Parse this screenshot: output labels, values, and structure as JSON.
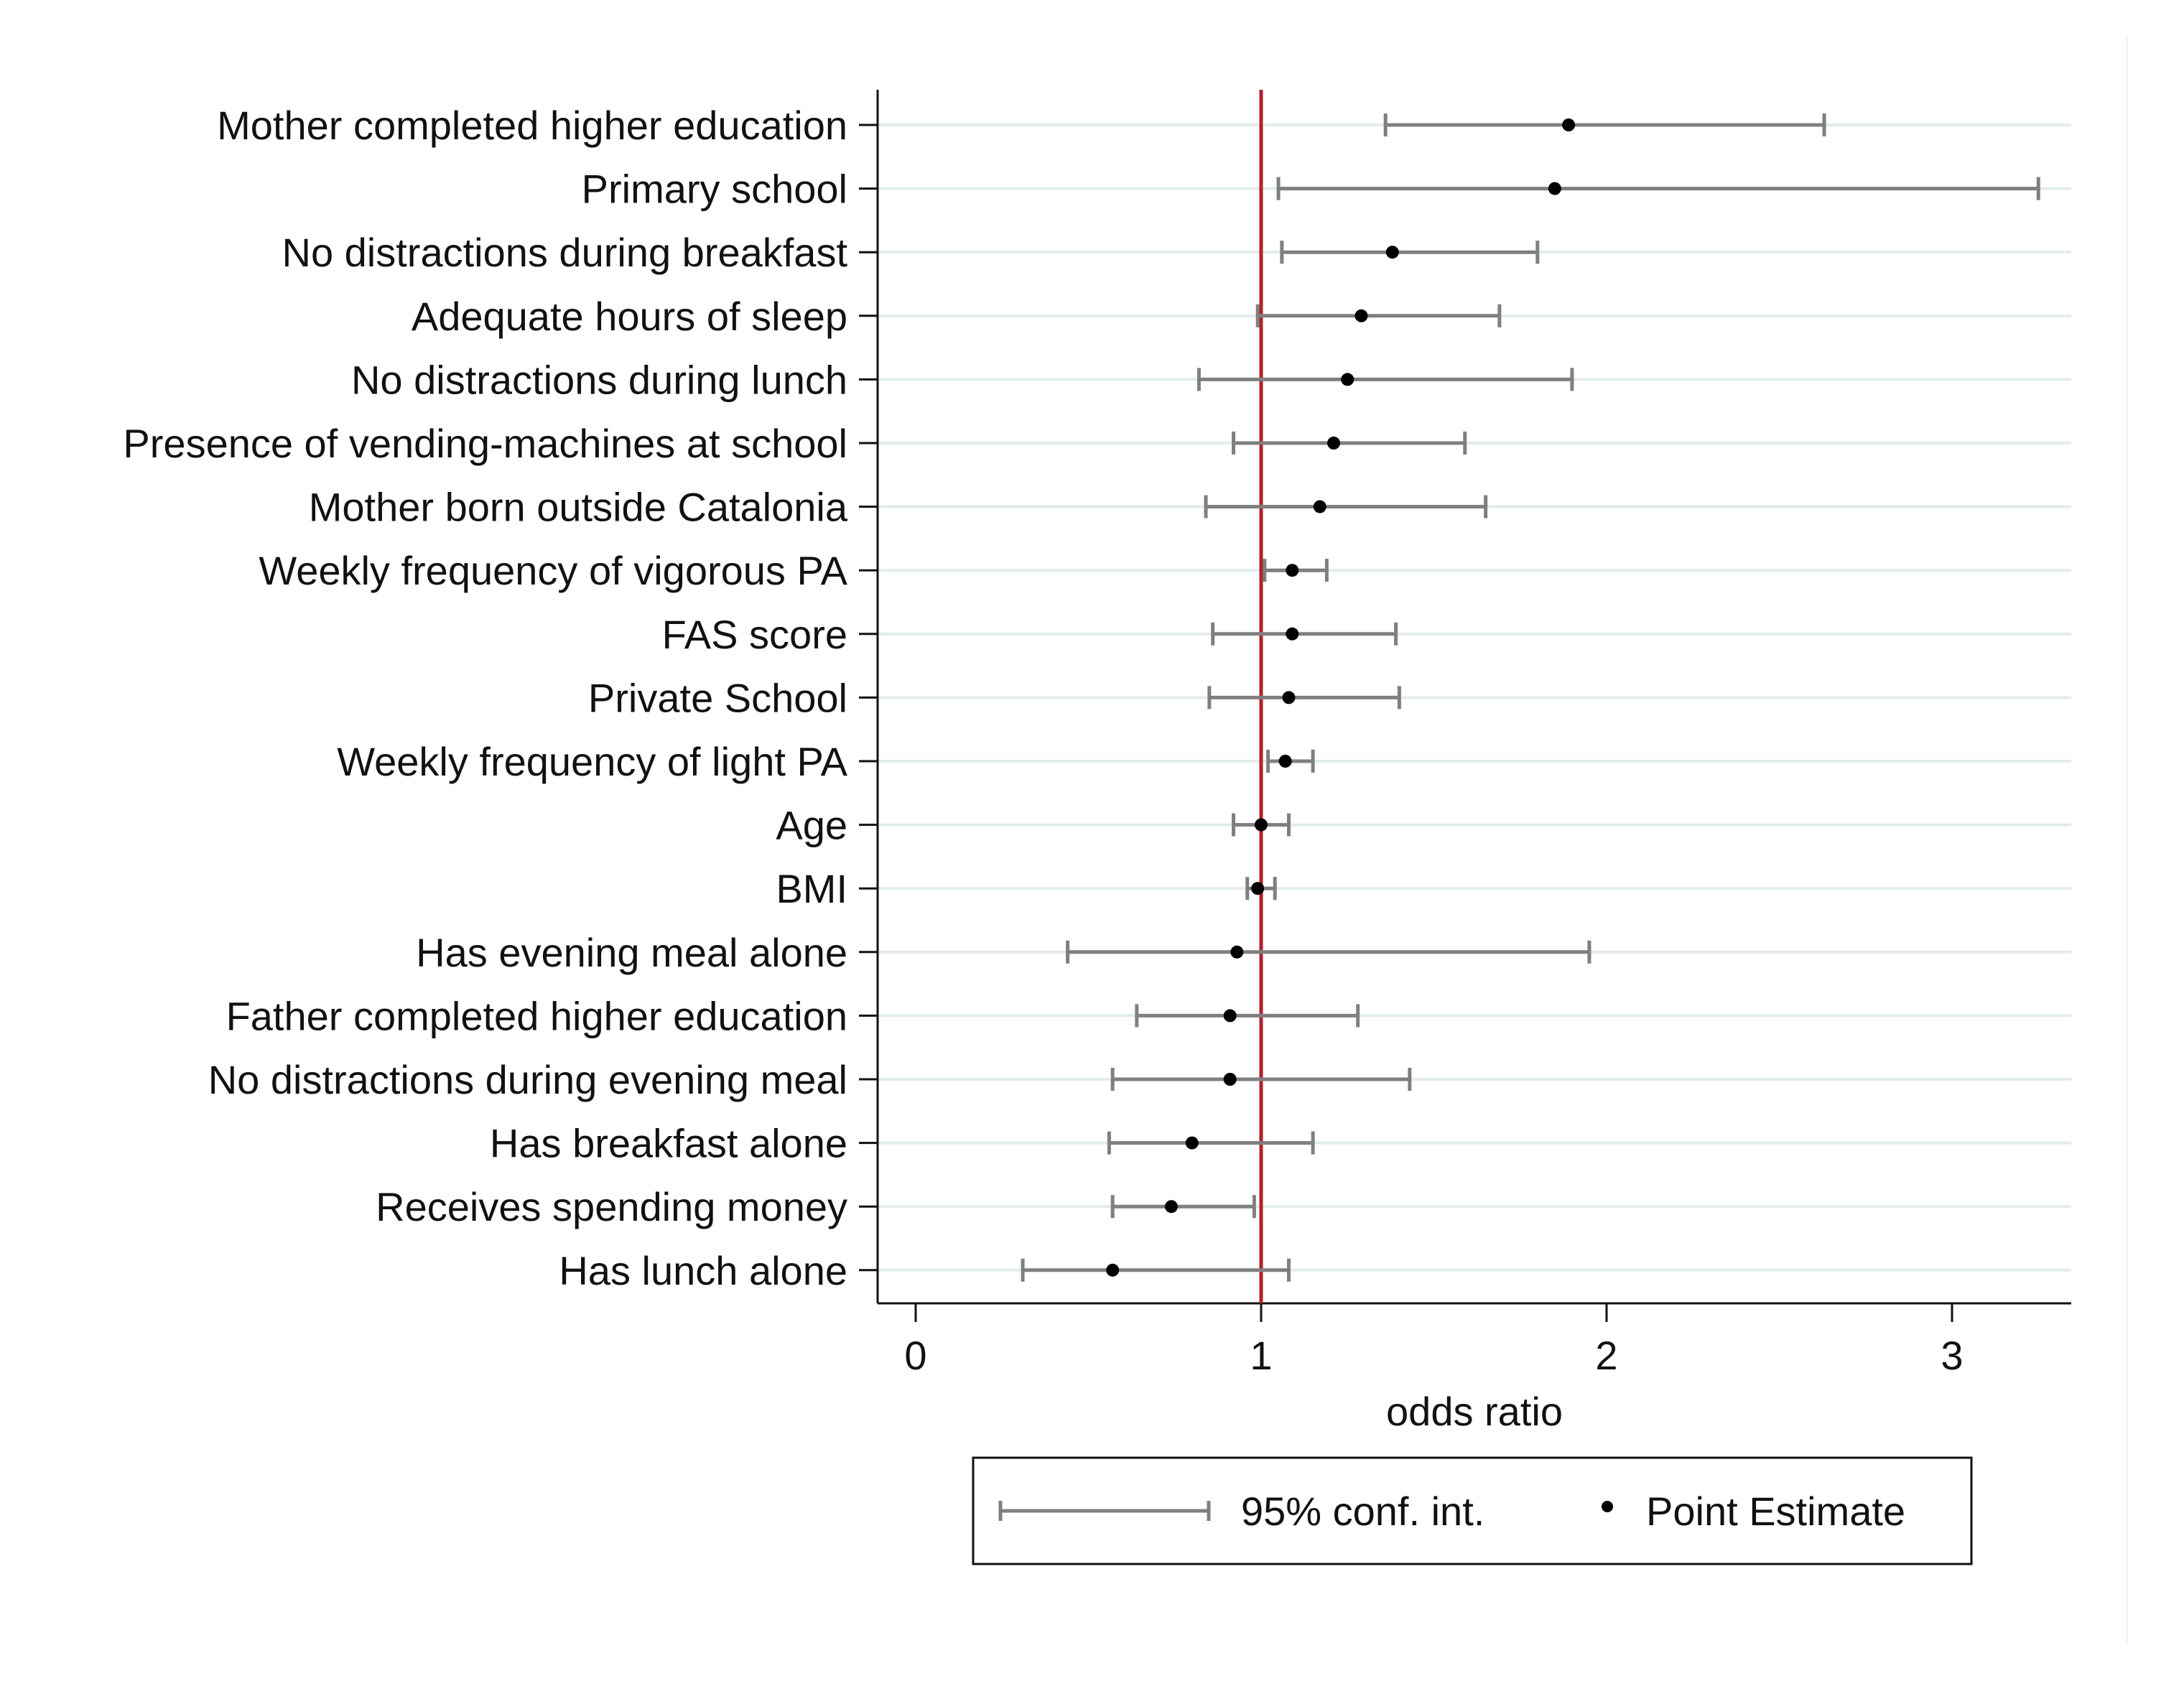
{
  "chart_data": {
    "type": "forest",
    "title": "",
    "xlabel": "odds ratio",
    "ylabel": "",
    "xlim": [
      -0.1,
      3.35
    ],
    "xticks": [
      0,
      1,
      2,
      3
    ],
    "reference_line": 1,
    "reference_color": "#b3202a",
    "ci_color": "#7f7f7f",
    "point_color": "#000000",
    "grid": true,
    "legend_position": "bottom",
    "legend": {
      "ci_label": "95% conf. int.",
      "point_label": "Point Estimate"
    },
    "categories": [
      "Mother completed higher education",
      "Primary school",
      "No distractions during breakfast",
      "Adequate hours of sleep",
      "No distractions during lunch",
      "Presence of vending-machines at school",
      "Mother born outside Catalonia",
      "Weekly frequency of vigorous PA",
      "FAS score",
      "Private School",
      "Weekly frequency of light PA",
      "Age",
      "BMI",
      "Has evening meal alone",
      "Father completed higher education",
      "No distractions during evening meal",
      "Has breakfast alone",
      "Receives spending money",
      "Has lunch alone"
    ],
    "estimates": [
      1.89,
      1.85,
      1.38,
      1.29,
      1.25,
      1.21,
      1.17,
      1.09,
      1.09,
      1.08,
      1.07,
      1.0,
      0.99,
      0.93,
      0.91,
      0.91,
      0.8,
      0.74,
      0.57
    ],
    "ci_lower": [
      1.36,
      1.05,
      1.06,
      0.99,
      0.82,
      0.92,
      0.84,
      1.01,
      0.86,
      0.85,
      1.02,
      0.92,
      0.96,
      0.44,
      0.64,
      0.57,
      0.56,
      0.57,
      0.31
    ],
    "ci_upper": [
      2.63,
      3.25,
      1.8,
      1.69,
      1.9,
      1.59,
      1.65,
      1.19,
      1.39,
      1.4,
      1.15,
      1.08,
      1.04,
      1.95,
      1.28,
      1.43,
      1.15,
      0.98,
      1.08
    ]
  }
}
